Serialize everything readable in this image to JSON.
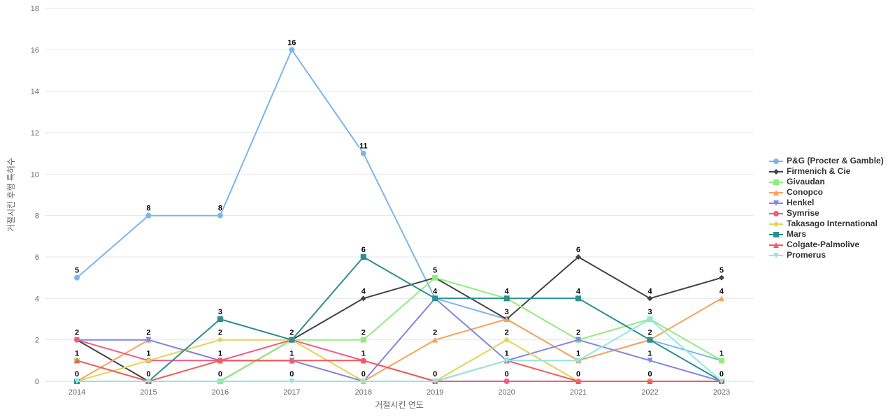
{
  "chart_data": {
    "type": "line",
    "x": [
      2014,
      2015,
      2016,
      2017,
      2018,
      2019,
      2020,
      2021,
      2022,
      2023
    ],
    "series": [
      {
        "name": "P&G (Procter & Gamble)",
        "color": "#7cb5ec",
        "marker": "circle",
        "values": [
          5,
          8,
          8,
          16,
          11,
          4,
          3,
          1,
          2,
          1
        ]
      },
      {
        "name": "Firmenich & Cie",
        "color": "#434348",
        "marker": "diamond",
        "values": [
          2,
          0,
          0,
          2,
          4,
          5,
          3,
          6,
          4,
          5
        ]
      },
      {
        "name": "Givaudan",
        "color": "#90ed7d",
        "marker": "square",
        "values": [
          1,
          0,
          0,
          2,
          2,
          5,
          4,
          2,
          3,
          1
        ]
      },
      {
        "name": "Conopco",
        "color": "#f7a35c",
        "marker": "triangle",
        "values": [
          0,
          2,
          1,
          1,
          0,
          2,
          3,
          1,
          2,
          4
        ]
      },
      {
        "name": "Henkel",
        "color": "#8085e9",
        "marker": "triangle-down",
        "values": [
          2,
          2,
          1,
          1,
          0,
          4,
          1,
          2,
          1,
          0
        ]
      },
      {
        "name": "Symrise",
        "color": "#f15c80",
        "marker": "circle",
        "values": [
          2,
          1,
          1,
          2,
          1,
          0,
          0,
          0,
          0,
          0
        ]
      },
      {
        "name": "Takasago International",
        "color": "#e4d354",
        "marker": "diamond",
        "values": [
          0,
          1,
          2,
          2,
          0,
          0,
          2,
          0,
          0,
          0
        ]
      },
      {
        "name": "Mars",
        "color": "#2b908f",
        "marker": "square",
        "values": [
          0,
          0,
          3,
          2,
          6,
          4,
          4,
          4,
          2,
          0
        ]
      },
      {
        "name": "Colgate-Palmolive",
        "color": "#f45b5b",
        "marker": "triangle",
        "values": [
          1,
          0,
          1,
          1,
          1,
          0,
          1,
          0,
          0,
          0
        ]
      },
      {
        "name": "Promerus",
        "color": "#91e8e1",
        "marker": "triangle-down",
        "values": [
          0,
          0,
          0,
          0,
          0,
          0,
          1,
          1,
          3,
          0
        ]
      }
    ],
    "xlabel": "거절시킨 연도",
    "ylabel": "거절시킨 후행 특허수",
    "ylim": [
      0,
      18
    ],
    "yticks": [
      0,
      2,
      4,
      6,
      8,
      10,
      12,
      14,
      16,
      18
    ],
    "grid": true,
    "legend_position": "right",
    "data_labels": true
  },
  "colors": {
    "background": "#ffffff",
    "gridline": "#e6e6e6",
    "axis_line": "#ccd6eb",
    "tick_label": "#666666",
    "axis_title": "#666666",
    "legend_text": "#333333",
    "data_label": "#000000"
  }
}
